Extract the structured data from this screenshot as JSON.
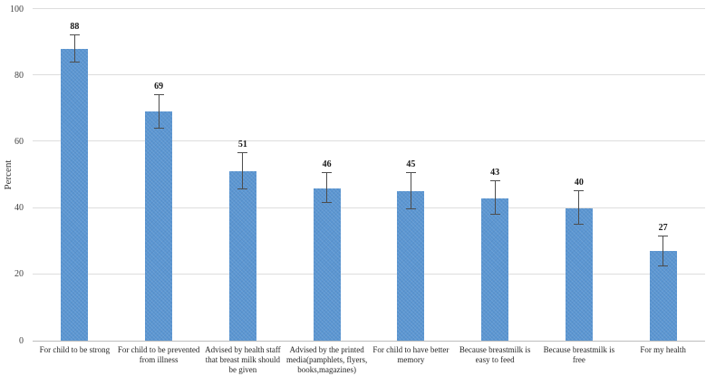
{
  "chart_data": {
    "type": "bar",
    "title": "",
    "ylabel": "Percent",
    "xlabel": "",
    "ylim": [
      0,
      100
    ],
    "yticks": [
      0,
      20,
      40,
      60,
      80,
      100
    ],
    "grid": "horizontal",
    "legend_position": "none",
    "bar_color": "#5b96d2",
    "error_bar_color": "#4d4d4d",
    "gridline_color": "#dddddd",
    "categories": [
      "For child to be strong",
      "For child to be prevented from illness",
      "Advised by health staff that breast milk should be given",
      "Advised by the printed media(pamphlets, flyers, books,magazines)",
      "For child to have better memory",
      "Because breastmilk is easy to feed",
      "Because breastmilk is free",
      "For my health"
    ],
    "values": [
      88,
      69,
      51,
      46,
      45,
      43,
      40,
      27
    ],
    "error": [
      4,
      5,
      5.5,
      4.5,
      5.5,
      5,
      5,
      4.5
    ],
    "value_labels": [
      "88",
      "69",
      "51",
      "46",
      "45",
      "43",
      "40",
      "27"
    ]
  }
}
